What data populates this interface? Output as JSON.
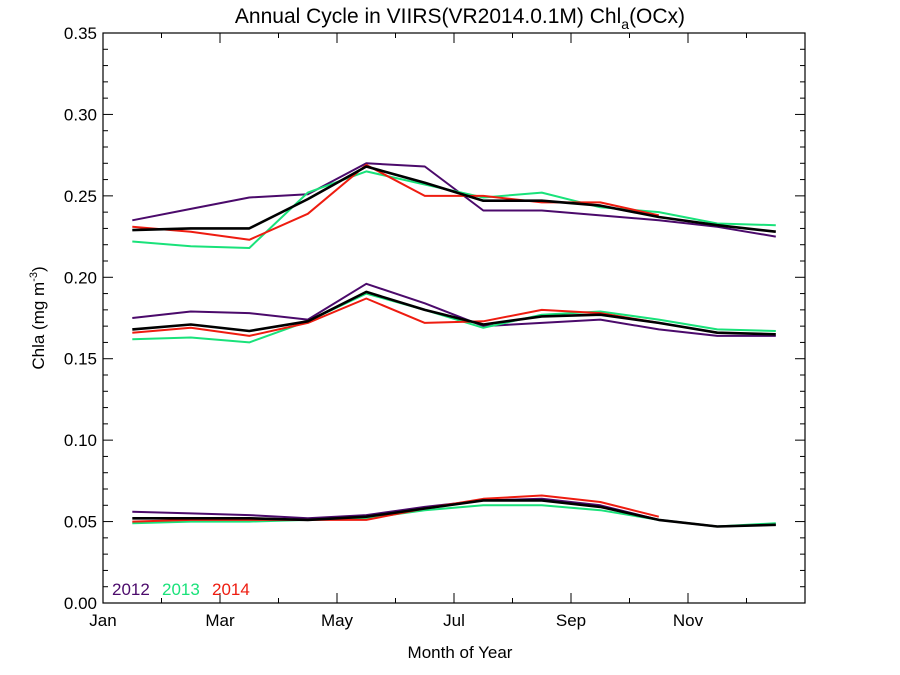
{
  "chart_data": {
    "type": "line",
    "title_prefix": "Annual Cycle in VIIRS(VR2014.0.1M) Chl",
    "title_subscript": "a",
    "title_suffix": "(OCx)",
    "xlabel": "Month of Year",
    "ylabel_prefix": "Chla (mg m",
    "ylabel_superscript": "-3",
    "ylabel_suffix": ")",
    "ylim": [
      0,
      0.35
    ],
    "xlim": [
      1,
      13
    ],
    "y_ticks": [
      0.0,
      0.05,
      0.1,
      0.15,
      0.2,
      0.25,
      0.3,
      0.35
    ],
    "y_tick_labels": [
      "0.00",
      "0.05",
      "0.10",
      "0.15",
      "0.20",
      "0.25",
      "0.30",
      "0.35"
    ],
    "x_tick_labels": [
      {
        "month": 1,
        "label": "Jan"
      },
      {
        "month": 3,
        "label": "Mar"
      },
      {
        "month": 5,
        "label": "May"
      },
      {
        "month": 7,
        "label": "Jul"
      },
      {
        "month": 9,
        "label": "Sep"
      },
      {
        "month": 11,
        "label": "Nov"
      }
    ],
    "x": [
      1.5,
      2.5,
      3.5,
      4.5,
      5.5,
      6.5,
      7.5,
      8.5,
      9.5,
      10.5,
      11.5,
      12.5
    ],
    "legend_position": "bottom-left",
    "legend": [
      {
        "label": "2012",
        "color": "#4b0a6b"
      },
      {
        "label": "2013",
        "color": "#19e27a"
      },
      {
        "label": "2014",
        "color": "#ee1c10"
      }
    ],
    "groups": [
      {
        "name": "upper",
        "series": [
          {
            "name": "2012",
            "color": "#4b0a6b",
            "values": [
              0.235,
              0.242,
              0.249,
              0.251,
              0.27,
              0.268,
              0.241,
              0.241,
              0.238,
              0.235,
              0.231,
              0.225
            ]
          },
          {
            "name": "2013",
            "color": "#19e27a",
            "values": [
              0.222,
              0.219,
              0.218,
              0.252,
              0.265,
              0.257,
              0.249,
              0.252,
              0.243,
              0.24,
              0.233,
              0.232
            ]
          },
          {
            "name": "2014",
            "color": "#ee1c10",
            "values": [
              0.231,
              0.228,
              0.223,
              0.239,
              0.269,
              0.25,
              0.25,
              0.246,
              0.246,
              0.238,
              null,
              null
            ]
          },
          {
            "name": "mean",
            "color": "#000000",
            "values": [
              0.229,
              0.23,
              0.23,
              0.248,
              0.268,
              0.258,
              0.247,
              0.247,
              0.244,
              0.237,
              0.232,
              0.228
            ]
          }
        ]
      },
      {
        "name": "middle",
        "series": [
          {
            "name": "2012",
            "color": "#4b0a6b",
            "values": [
              0.175,
              0.179,
              0.178,
              0.174,
              0.196,
              0.184,
              0.17,
              0.172,
              0.174,
              0.168,
              0.164,
              0.164
            ]
          },
          {
            "name": "2013",
            "color": "#19e27a",
            "values": [
              0.162,
              0.163,
              0.16,
              0.173,
              0.19,
              0.18,
              0.169,
              0.177,
              0.179,
              0.174,
              0.168,
              0.167
            ]
          },
          {
            "name": "2014",
            "color": "#ee1c10",
            "values": [
              0.166,
              0.169,
              0.164,
              0.172,
              0.187,
              0.172,
              0.173,
              0.18,
              0.178,
              0.172,
              null,
              null
            ]
          },
          {
            "name": "mean",
            "color": "#000000",
            "values": [
              0.168,
              0.171,
              0.167,
              0.173,
              0.191,
              0.18,
              0.171,
              0.176,
              0.177,
              0.172,
              0.166,
              0.165
            ]
          }
        ]
      },
      {
        "name": "lower",
        "series": [
          {
            "name": "2012",
            "color": "#4b0a6b",
            "values": [
              0.056,
              0.055,
              0.054,
              0.052,
              0.054,
              0.059,
              0.063,
              0.064,
              0.06,
              0.051,
              0.047,
              0.048
            ]
          },
          {
            "name": "2013",
            "color": "#19e27a",
            "values": [
              0.049,
              0.05,
              0.05,
              0.051,
              0.052,
              0.057,
              0.06,
              0.06,
              0.057,
              0.051,
              0.047,
              0.049
            ]
          },
          {
            "name": "2014",
            "color": "#ee1c10",
            "values": [
              0.05,
              0.051,
              0.051,
              0.051,
              0.051,
              0.058,
              0.064,
              0.066,
              0.062,
              0.053,
              null,
              null
            ]
          },
          {
            "name": "mean",
            "color": "#000000",
            "values": [
              0.052,
              0.052,
              0.052,
              0.051,
              0.053,
              0.058,
              0.063,
              0.063,
              0.059,
              0.051,
              0.047,
              0.048
            ]
          }
        ]
      }
    ]
  }
}
